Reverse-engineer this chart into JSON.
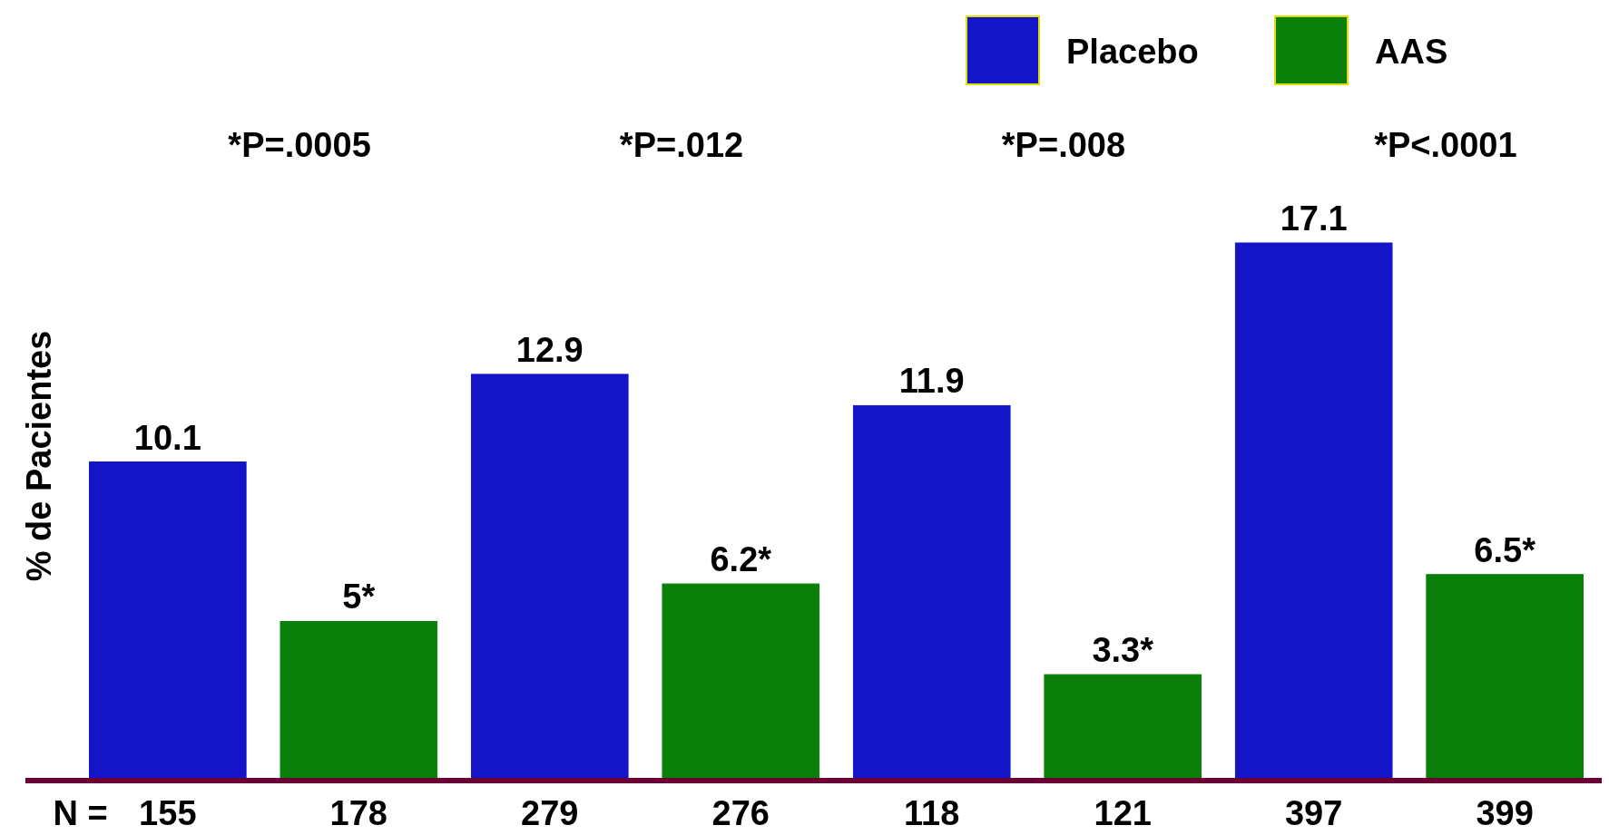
{
  "chart_data": {
    "type": "bar",
    "ylabel": "% de Pacientes",
    "xlabel": "N =",
    "categories": [
      "155",
      "178",
      "279",
      "276",
      "118",
      "121",
      "397",
      "399"
    ],
    "series": [
      {
        "name": "Placebo",
        "color": "#1414c8",
        "values": [
          10.1,
          null,
          12.9,
          null,
          11.9,
          null,
          17.1,
          null
        ],
        "value_labels": [
          "10.1",
          null,
          "12.9",
          null,
          "11.9",
          null,
          "17.1",
          null
        ]
      },
      {
        "name": "AAS",
        "color": "#0a7f0a",
        "values": [
          null,
          5,
          null,
          6.2,
          null,
          3.3,
          null,
          6.5
        ],
        "value_labels": [
          null,
          "5*",
          null,
          "6.2*",
          null,
          "3.3*",
          null,
          "6.5*"
        ]
      }
    ],
    "annotations": [
      "*P=.0005",
      "*P=.012",
      "*P=.008",
      "*P<.0001"
    ],
    "legend": "top right"
  }
}
